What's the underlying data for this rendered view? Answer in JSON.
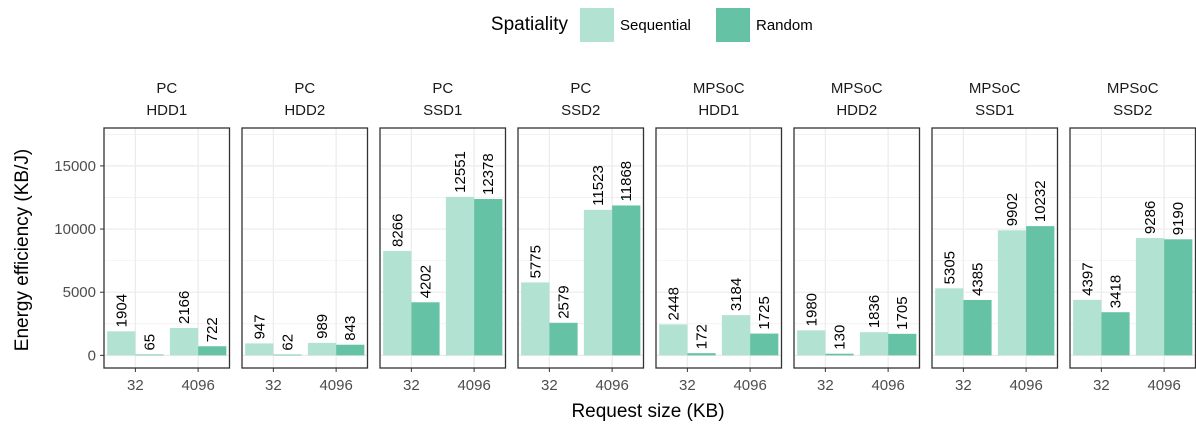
{
  "chart_data": {
    "type": "bar",
    "legend": {
      "title": "Spatiality",
      "placement": "top",
      "entries": [
        {
          "name": "Sequential",
          "color": "#b2e2d2"
        },
        {
          "name": "Random",
          "color": "#66c2a5"
        }
      ]
    },
    "xlabel": "Request size (KB)",
    "ylabel": "Energy efficiency (KB/J)",
    "ylim": [
      -1000,
      18000
    ],
    "yticks": [
      0,
      5000,
      10000,
      15000
    ],
    "ytick_labels": [
      "0",
      "5000",
      "10000",
      "15000"
    ],
    "categories": [
      "32",
      "4096"
    ],
    "grid": true,
    "facets": [
      {
        "platform": "PC",
        "device": "HDD1",
        "series": [
          {
            "name": "Sequential",
            "values": [
              1904,
              2166
            ]
          },
          {
            "name": "Random",
            "values": [
              65,
              722
            ]
          }
        ]
      },
      {
        "platform": "PC",
        "device": "HDD2",
        "series": [
          {
            "name": "Sequential",
            "values": [
              947,
              989
            ]
          },
          {
            "name": "Random",
            "values": [
              62,
              843
            ]
          }
        ]
      },
      {
        "platform": "PC",
        "device": "SSD1",
        "series": [
          {
            "name": "Sequential",
            "values": [
              8266,
              12551
            ]
          },
          {
            "name": "Random",
            "values": [
              4202,
              12378
            ]
          }
        ]
      },
      {
        "platform": "PC",
        "device": "SSD2",
        "series": [
          {
            "name": "Sequential",
            "values": [
              5775,
              11523
            ]
          },
          {
            "name": "Random",
            "values": [
              2579,
              11868
            ]
          }
        ]
      },
      {
        "platform": "MPSoC",
        "device": "HDD1",
        "series": [
          {
            "name": "Sequential",
            "values": [
              2448,
              3184
            ]
          },
          {
            "name": "Random",
            "values": [
              172,
              1725
            ]
          }
        ]
      },
      {
        "platform": "MPSoC",
        "device": "HDD2",
        "series": [
          {
            "name": "Sequential",
            "values": [
              1980,
              1836
            ]
          },
          {
            "name": "Random",
            "values": [
              130,
              1705
            ]
          }
        ]
      },
      {
        "platform": "MPSoC",
        "device": "SSD1",
        "series": [
          {
            "name": "Sequential",
            "values": [
              5305,
              9902
            ]
          },
          {
            "name": "Random",
            "values": [
              4385,
              10232
            ]
          }
        ]
      },
      {
        "platform": "MPSoC",
        "device": "SSD2",
        "series": [
          {
            "name": "Sequential",
            "values": [
              4397,
              9286
            ]
          },
          {
            "name": "Random",
            "values": [
              3418,
              9190
            ]
          }
        ]
      }
    ]
  }
}
